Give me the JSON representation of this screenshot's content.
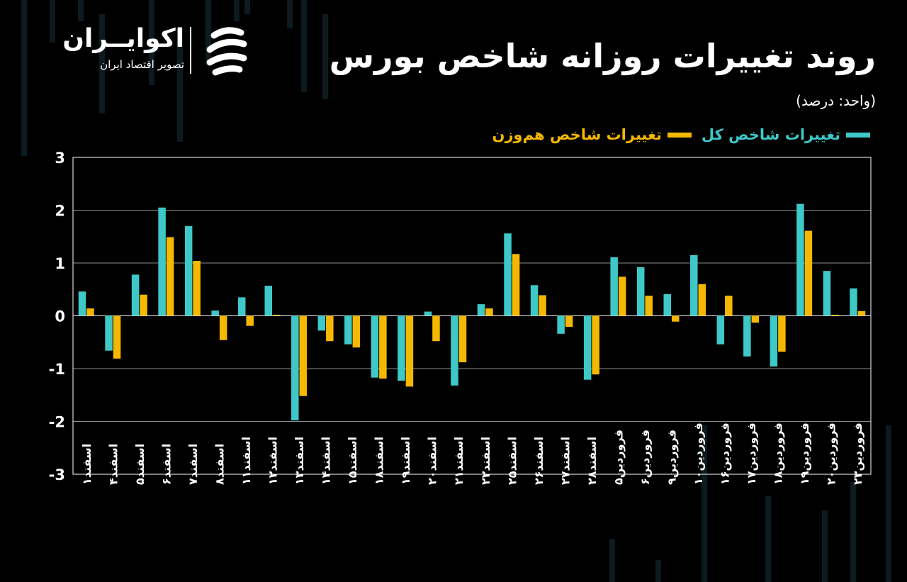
{
  "brand": {
    "name": "اکوایــران",
    "tagline": "تصویر اقتصاد ایران"
  },
  "header": {
    "title": "روند تغییرات روزانه شاخص بورس",
    "unit": "(واحد: درصد)"
  },
  "colors": {
    "background": "#000000",
    "series_total": "#3ec8c8",
    "series_equal": "#f5b800",
    "grid": "#ffffff"
  },
  "chart_data": {
    "type": "bar",
    "title": "روند تغییرات روزانه شاخص بورس",
    "ylabel": "",
    "xlabel": "",
    "ylim": [
      -3,
      3
    ],
    "yticks": [
      {
        "value": 3,
        "label": "3"
      },
      {
        "value": 2,
        "label": "2"
      },
      {
        "value": 1,
        "label": "1"
      },
      {
        "value": 0,
        "label": "0"
      },
      {
        "value": -1,
        "label": "-1"
      },
      {
        "value": -2,
        "label": "-2"
      },
      {
        "value": -3,
        "label": "-3"
      }
    ],
    "grid": true,
    "legend_position": "top-right",
    "categories": [
      "اسفند۱",
      "اسفند۴",
      "اسفند۵",
      "اسفند۶",
      "اسفند۷",
      "اسفند۸",
      "اسفند۱۱",
      "اسفند۱۲",
      "اسفند۱۳",
      "اسفند۱۴",
      "اسفند۱۵",
      "اسفند۱۸",
      "اسفند۱۹",
      "اسفند۲۰",
      "اسفند۲۱",
      "اسفند۲۲",
      "اسفند۲۵",
      "اسفند۲۶",
      "اسفند۲۷",
      "اسفند۲۸",
      "فروردین۵",
      "فروردین۶",
      "فروردین۹",
      "فروردین۱۰",
      "فروردین۱۶",
      "فروردین۱۷",
      "فروردین۱۸",
      "فروردین۱۹",
      "فروردین۲۰",
      "فروردین۲۳"
    ],
    "series": [
      {
        "name": "تغییرات شاخص کل",
        "color": "#3ec8c8",
        "values": [
          0.46,
          -0.66,
          0.78,
          2.05,
          1.7,
          0.1,
          0.35,
          0.57,
          -1.98,
          -0.28,
          -0.54,
          -1.17,
          -1.23,
          0.08,
          -1.32,
          0.22,
          1.56,
          0.58,
          -0.34,
          -1.21,
          1.11,
          0.92,
          0.41,
          1.15,
          -0.54,
          -0.77,
          -0.96,
          2.12,
          0.85,
          0.52
        ]
      },
      {
        "name": "تغییرات شاخص هم‌وزن",
        "color": "#f5b800",
        "values": [
          0.14,
          -0.81,
          0.4,
          1.49,
          1.04,
          -0.46,
          -0.19,
          0.02,
          -1.52,
          -0.48,
          -0.6,
          -1.19,
          -1.34,
          -0.48,
          -0.88,
          0.14,
          1.17,
          0.39,
          -0.21,
          -1.11,
          0.74,
          0.38,
          -0.11,
          0.6,
          0.38,
          -0.13,
          -0.68,
          1.61,
          0.02,
          0.09
        ]
      }
    ]
  }
}
